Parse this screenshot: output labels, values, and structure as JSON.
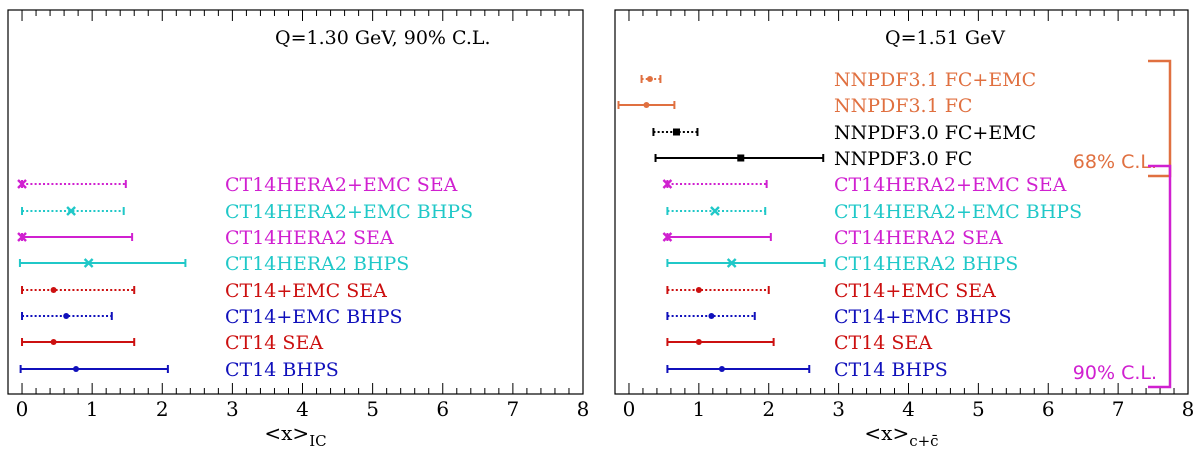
{
  "chart_data": [
    {
      "type": "errorbar",
      "title": "Q=1.30 GeV, 90% C.L.",
      "xlabel": "<x>",
      "xlabel_sub": "IC",
      "xlim": [
        -0.2,
        8
      ],
      "xticks": [
        0,
        1,
        2,
        3,
        4,
        5,
        6,
        7,
        8
      ],
      "series": [
        {
          "name": "CT14HERA2+EMC SEA",
          "color": "#d020d0",
          "style": "dotted",
          "marker": "x",
          "center": 0.0,
          "low": 0.0,
          "high": 1.48
        },
        {
          "name": "CT14HERA2+EMC BHPS",
          "color": "#20c8c8",
          "style": "dotted",
          "marker": "x",
          "center": 0.7,
          "low": 0.0,
          "high": 1.45
        },
        {
          "name": "CT14HERA2 SEA",
          "color": "#d020d0",
          "style": "solid",
          "marker": "x",
          "center": 0.0,
          "low": 0.0,
          "high": 1.57
        },
        {
          "name": "CT14HERA2 BHPS",
          "color": "#20c8c8",
          "style": "solid",
          "marker": "x",
          "center": 0.95,
          "low": -0.03,
          "high": 2.33
        },
        {
          "name": "CT14+EMC SEA",
          "color": "#cc1010",
          "style": "dotted",
          "marker": "dot",
          "center": 0.45,
          "low": 0.0,
          "high": 1.6
        },
        {
          "name": "CT14+EMC BHPS",
          "color": "#1010bb",
          "style": "dotted",
          "marker": "dot",
          "center": 0.63,
          "low": 0.0,
          "high": 1.28
        },
        {
          "name": "CT14 SEA",
          "color": "#cc1010",
          "style": "solid",
          "marker": "dot",
          "center": 0.45,
          "low": 0.0,
          "high": 1.6
        },
        {
          "name": "CT14 BHPS",
          "color": "#1010bb",
          "style": "solid",
          "marker": "dot",
          "center": 0.77,
          "low": -0.02,
          "high": 2.08
        }
      ]
    },
    {
      "type": "errorbar",
      "title": "Q=1.51 GeV",
      "xlabel": "<x>",
      "xlabel_sub": "c+c̄",
      "xlim": [
        -0.2,
        8
      ],
      "xticks": [
        0,
        1,
        2,
        3,
        4,
        5,
        6,
        7,
        8
      ],
      "series": [
        {
          "name": "NNPDF3.1 FC+EMC",
          "color": "#e07040",
          "style": "dotted",
          "marker": "dot",
          "center": 0.3,
          "low": 0.18,
          "high": 0.45
        },
        {
          "name": "NNPDF3.1 FC",
          "color": "#e07040",
          "style": "solid",
          "marker": "dot",
          "center": 0.25,
          "low": -0.15,
          "high": 0.65
        },
        {
          "name": "NNPDF3.0 FC+EMC",
          "color": "#000000",
          "style": "dotted",
          "marker": "square",
          "center": 0.68,
          "low": 0.35,
          "high": 0.98
        },
        {
          "name": "NNPDF3.0 FC",
          "color": "#000000",
          "style": "solid",
          "marker": "square",
          "center": 1.6,
          "low": 0.38,
          "high": 2.78
        },
        {
          "name": "CT14HERA2+EMC SEA",
          "color": "#d020d0",
          "style": "dotted",
          "marker": "x",
          "center": 0.55,
          "low": 0.55,
          "high": 1.97
        },
        {
          "name": "CT14HERA2+EMC BHPS",
          "color": "#20c8c8",
          "style": "dotted",
          "marker": "x",
          "center": 1.23,
          "low": 0.55,
          "high": 1.95
        },
        {
          "name": "CT14HERA2 SEA",
          "color": "#d020d0",
          "style": "solid",
          "marker": "x",
          "center": 0.55,
          "low": 0.55,
          "high": 2.03
        },
        {
          "name": "CT14HERA2 BHPS",
          "color": "#20c8c8",
          "style": "solid",
          "marker": "x",
          "center": 1.47,
          "low": 0.55,
          "high": 2.8
        },
        {
          "name": "CT14+EMC SEA",
          "color": "#cc1010",
          "style": "dotted",
          "marker": "dot",
          "center": 1.0,
          "low": 0.55,
          "high": 2.0
        },
        {
          "name": "CT14+EMC BHPS",
          "color": "#1010bb",
          "style": "dotted",
          "marker": "dot",
          "center": 1.18,
          "low": 0.55,
          "high": 1.8
        },
        {
          "name": "CT14 SEA",
          "color": "#cc1010",
          "style": "solid",
          "marker": "dot",
          "center": 1.0,
          "low": 0.55,
          "high": 2.07
        },
        {
          "name": "CT14 BHPS",
          "color": "#1010bb",
          "style": "solid",
          "marker": "dot",
          "center": 1.33,
          "low": 0.55,
          "high": 2.58
        }
      ],
      "annotations": [
        {
          "text": "68% C.L.",
          "color": "#e07040",
          "spans_series": [
            0,
            3
          ]
        },
        {
          "text": "90% C.L.",
          "color": "#d020d0",
          "spans_series": [
            4,
            11
          ]
        }
      ]
    }
  ]
}
